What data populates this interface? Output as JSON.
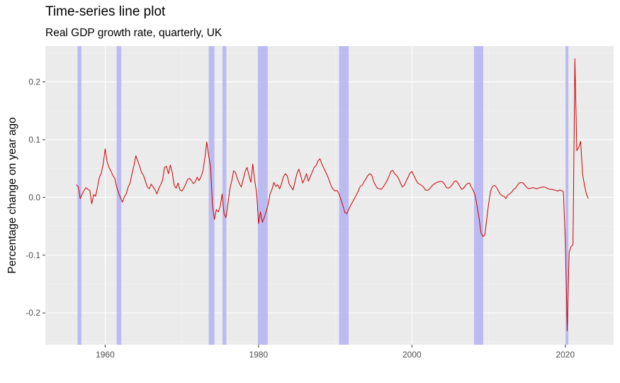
{
  "chart_data": {
    "type": "line",
    "title": "Time-series line plot",
    "subtitle": "Real GDP growth rate, quarterly, UK",
    "xlabel": "",
    "ylabel": "Percentage change on year ago",
    "xlim": [
      1952.2,
      2026.3
    ],
    "ylim": [
      -0.255,
      0.262
    ],
    "x_ticks": [
      1960,
      1980,
      2000,
      2020
    ],
    "x_tick_labels": [
      "1960",
      "1980",
      "2000",
      "2020"
    ],
    "y_ticks": [
      -0.2,
      -0.1,
      0.0,
      0.1,
      0.2
    ],
    "y_tick_labels": [
      "-0.2",
      "-0.1",
      "0.0",
      "0.1",
      "0.2"
    ],
    "grid": true,
    "colors": {
      "panel_background": "#ebebeb",
      "grid_major": "#ffffff",
      "grid_minor": "#f5f5f5",
      "line": "#cc0000",
      "recession": "#b3b3f2"
    },
    "recessions": [
      [
        1956.4,
        1956.9
      ],
      [
        1961.5,
        1962.1
      ],
      [
        1973.5,
        1974.25
      ],
      [
        1975.3,
        1975.8
      ],
      [
        1979.9,
        1981.2
      ],
      [
        1990.5,
        1991.75
      ],
      [
        2008.1,
        2009.3
      ],
      [
        2020.0,
        2020.4
      ]
    ],
    "series": [
      {
        "values": [
          [
            1956.25,
            0.022
          ],
          [
            1956.5,
            0.018
          ],
          [
            1956.75,
            -0.002
          ],
          [
            1957.0,
            0.006
          ],
          [
            1957.25,
            0.012
          ],
          [
            1957.5,
            0.017
          ],
          [
            1957.75,
            0.014
          ],
          [
            1958.0,
            0.012
          ],
          [
            1958.25,
            -0.011
          ],
          [
            1958.5,
            0.005
          ],
          [
            1958.75,
            0.002
          ],
          [
            1959.0,
            0.018
          ],
          [
            1959.25,
            0.035
          ],
          [
            1959.5,
            0.042
          ],
          [
            1959.75,
            0.058
          ],
          [
            1960.0,
            0.084
          ],
          [
            1960.25,
            0.062
          ],
          [
            1960.5,
            0.052
          ],
          [
            1960.75,
            0.046
          ],
          [
            1961.0,
            0.038
          ],
          [
            1961.25,
            0.033
          ],
          [
            1961.5,
            0.018
          ],
          [
            1961.75,
            0.008
          ],
          [
            1962.0,
            -0.001
          ],
          [
            1962.25,
            -0.008
          ],
          [
            1962.5,
            0.001
          ],
          [
            1962.75,
            0.006
          ],
          [
            1963.0,
            0.018
          ],
          [
            1963.25,
            0.025
          ],
          [
            1963.5,
            0.041
          ],
          [
            1963.75,
            0.055
          ],
          [
            1964.0,
            0.072
          ],
          [
            1964.25,
            0.063
          ],
          [
            1964.5,
            0.054
          ],
          [
            1964.75,
            0.043
          ],
          [
            1965.0,
            0.038
          ],
          [
            1965.25,
            0.028
          ],
          [
            1965.5,
            0.018
          ],
          [
            1965.75,
            0.015
          ],
          [
            1966.0,
            0.023
          ],
          [
            1966.25,
            0.018
          ],
          [
            1966.5,
            0.013
          ],
          [
            1966.75,
            0.006
          ],
          [
            1967.0,
            0.016
          ],
          [
            1967.25,
            0.022
          ],
          [
            1967.5,
            0.031
          ],
          [
            1967.75,
            0.052
          ],
          [
            1968.0,
            0.054
          ],
          [
            1968.25,
            0.041
          ],
          [
            1968.5,
            0.056
          ],
          [
            1968.75,
            0.043
          ],
          [
            1969.0,
            0.021
          ],
          [
            1969.25,
            0.016
          ],
          [
            1969.5,
            0.025
          ],
          [
            1969.75,
            0.013
          ],
          [
            1970.0,
            0.011
          ],
          [
            1970.25,
            0.016
          ],
          [
            1970.5,
            0.023
          ],
          [
            1970.75,
            0.031
          ],
          [
            1971.0,
            0.033
          ],
          [
            1971.25,
            0.029
          ],
          [
            1971.5,
            0.024
          ],
          [
            1971.75,
            0.027
          ],
          [
            1972.0,
            0.035
          ],
          [
            1972.25,
            0.029
          ],
          [
            1972.5,
            0.036
          ],
          [
            1972.75,
            0.046
          ],
          [
            1973.0,
            0.068
          ],
          [
            1973.25,
            0.096
          ],
          [
            1973.5,
            0.072
          ],
          [
            1973.75,
            0.052
          ],
          [
            1974.0,
            -0.015
          ],
          [
            1974.25,
            -0.038
          ],
          [
            1974.5,
            -0.021
          ],
          [
            1974.75,
            -0.025
          ],
          [
            1975.0,
            -0.016
          ],
          [
            1975.25,
            0.006
          ],
          [
            1975.5,
            -0.028
          ],
          [
            1975.75,
            -0.035
          ],
          [
            1976.0,
            -0.012
          ],
          [
            1976.25,
            0.014
          ],
          [
            1976.5,
            0.028
          ],
          [
            1976.75,
            0.046
          ],
          [
            1977.0,
            0.043
          ],
          [
            1977.25,
            0.032
          ],
          [
            1977.5,
            0.024
          ],
          [
            1977.75,
            0.018
          ],
          [
            1978.0,
            0.031
          ],
          [
            1978.25,
            0.045
          ],
          [
            1978.5,
            0.052
          ],
          [
            1978.75,
            0.038
          ],
          [
            1979.0,
            0.026
          ],
          [
            1979.25,
            0.058
          ],
          [
            1979.5,
            0.029
          ],
          [
            1979.75,
            0.008
          ],
          [
            1980.0,
            -0.045
          ],
          [
            1980.25,
            -0.025
          ],
          [
            1980.5,
            -0.043
          ],
          [
            1980.75,
            -0.035
          ],
          [
            1981.0,
            -0.024
          ],
          [
            1981.25,
            -0.012
          ],
          [
            1981.5,
            0.006
          ],
          [
            1981.75,
            0.014
          ],
          [
            1982.0,
            0.026
          ],
          [
            1982.25,
            0.019
          ],
          [
            1982.5,
            0.022
          ],
          [
            1982.75,
            0.015
          ],
          [
            1983.0,
            0.024
          ],
          [
            1983.25,
            0.036
          ],
          [
            1983.5,
            0.041
          ],
          [
            1983.75,
            0.037
          ],
          [
            1984.0,
            0.023
          ],
          [
            1984.25,
            0.018
          ],
          [
            1984.5,
            0.013
          ],
          [
            1984.75,
            0.027
          ],
          [
            1985.0,
            0.041
          ],
          [
            1985.25,
            0.049
          ],
          [
            1985.5,
            0.038
          ],
          [
            1985.75,
            0.025
          ],
          [
            1986.0,
            0.032
          ],
          [
            1986.25,
            0.041
          ],
          [
            1986.5,
            0.028
          ],
          [
            1986.75,
            0.036
          ],
          [
            1987.0,
            0.044
          ],
          [
            1987.25,
            0.052
          ],
          [
            1987.5,
            0.055
          ],
          [
            1987.75,
            0.063
          ],
          [
            1988.0,
            0.067
          ],
          [
            1988.25,
            0.058
          ],
          [
            1988.5,
            0.051
          ],
          [
            1988.75,
            0.044
          ],
          [
            1989.0,
            0.037
          ],
          [
            1989.25,
            0.028
          ],
          [
            1989.5,
            0.019
          ],
          [
            1989.75,
            0.014
          ],
          [
            1990.0,
            0.011
          ],
          [
            1990.25,
            0.012
          ],
          [
            1990.5,
            0.006
          ],
          [
            1990.75,
            -0.004
          ],
          [
            1991.0,
            -0.014
          ],
          [
            1991.25,
            -0.026
          ],
          [
            1991.5,
            -0.028
          ],
          [
            1991.75,
            -0.021
          ],
          [
            1992.0,
            -0.014
          ],
          [
            1992.25,
            -0.008
          ],
          [
            1992.5,
            -0.002
          ],
          [
            1992.75,
            0.004
          ],
          [
            1993.0,
            0.011
          ],
          [
            1993.25,
            0.019
          ],
          [
            1993.5,
            0.021
          ],
          [
            1993.75,
            0.027
          ],
          [
            1994.0,
            0.032
          ],
          [
            1994.25,
            0.038
          ],
          [
            1994.5,
            0.041
          ],
          [
            1994.75,
            0.039
          ],
          [
            1995.0,
            0.028
          ],
          [
            1995.25,
            0.021
          ],
          [
            1995.5,
            0.016
          ],
          [
            1995.75,
            0.015
          ],
          [
            1996.0,
            0.014
          ],
          [
            1996.25,
            0.018
          ],
          [
            1996.5,
            0.023
          ],
          [
            1996.75,
            0.029
          ],
          [
            1997.0,
            0.036
          ],
          [
            1997.25,
            0.045
          ],
          [
            1997.5,
            0.047
          ],
          [
            1997.75,
            0.041
          ],
          [
            1998.0,
            0.038
          ],
          [
            1998.25,
            0.033
          ],
          [
            1998.5,
            0.025
          ],
          [
            1998.75,
            0.018
          ],
          [
            1999.0,
            0.021
          ],
          [
            1999.25,
            0.028
          ],
          [
            1999.5,
            0.035
          ],
          [
            1999.75,
            0.042
          ],
          [
            2000.0,
            0.045
          ],
          [
            2000.25,
            0.038
          ],
          [
            2000.5,
            0.031
          ],
          [
            2000.75,
            0.025
          ],
          [
            2001.0,
            0.023
          ],
          [
            2001.25,
            0.021
          ],
          [
            2001.5,
            0.018
          ],
          [
            2001.75,
            0.013
          ],
          [
            2002.0,
            0.012
          ],
          [
            2002.25,
            0.014
          ],
          [
            2002.5,
            0.018
          ],
          [
            2002.75,
            0.022
          ],
          [
            2003.0,
            0.024
          ],
          [
            2003.25,
            0.026
          ],
          [
            2003.5,
            0.027
          ],
          [
            2003.75,
            0.028
          ],
          [
            2004.0,
            0.027
          ],
          [
            2004.25,
            0.023
          ],
          [
            2004.5,
            0.017
          ],
          [
            2004.75,
            0.016
          ],
          [
            2005.0,
            0.018
          ],
          [
            2005.25,
            0.022
          ],
          [
            2005.5,
            0.027
          ],
          [
            2005.75,
            0.029
          ],
          [
            2006.0,
            0.025
          ],
          [
            2006.25,
            0.019
          ],
          [
            2006.5,
            0.014
          ],
          [
            2006.75,
            0.016
          ],
          [
            2007.0,
            0.021
          ],
          [
            2007.25,
            0.024
          ],
          [
            2007.5,
            0.025
          ],
          [
            2007.75,
            0.018
          ],
          [
            2008.0,
            0.012
          ],
          [
            2008.25,
            0.003
          ],
          [
            2008.5,
            -0.015
          ],
          [
            2008.75,
            -0.035
          ],
          [
            2009.0,
            -0.061
          ],
          [
            2009.25,
            -0.068
          ],
          [
            2009.5,
            -0.065
          ],
          [
            2009.75,
            -0.038
          ],
          [
            2010.0,
            -0.011
          ],
          [
            2010.25,
            0.011
          ],
          [
            2010.5,
            0.019
          ],
          [
            2010.75,
            0.021
          ],
          [
            2011.0,
            0.018
          ],
          [
            2011.25,
            0.012
          ],
          [
            2011.5,
            0.006
          ],
          [
            2011.75,
            0.003
          ],
          [
            2012.0,
            0.002
          ],
          [
            2012.25,
            -0.002
          ],
          [
            2012.5,
            0.004
          ],
          [
            2012.75,
            0.006
          ],
          [
            2013.0,
            0.009
          ],
          [
            2013.25,
            0.014
          ],
          [
            2013.5,
            0.016
          ],
          [
            2013.75,
            0.021
          ],
          [
            2014.0,
            0.025
          ],
          [
            2014.25,
            0.026
          ],
          [
            2014.5,
            0.025
          ],
          [
            2014.75,
            0.021
          ],
          [
            2015.0,
            0.017
          ],
          [
            2015.25,
            0.015
          ],
          [
            2015.5,
            0.016
          ],
          [
            2015.75,
            0.017
          ],
          [
            2016.0,
            0.016
          ],
          [
            2016.25,
            0.015
          ],
          [
            2016.5,
            0.016
          ],
          [
            2016.75,
            0.017
          ],
          [
            2017.0,
            0.018
          ],
          [
            2017.25,
            0.018
          ],
          [
            2017.5,
            0.017
          ],
          [
            2017.75,
            0.015
          ],
          [
            2018.0,
            0.014
          ],
          [
            2018.25,
            0.014
          ],
          [
            2018.5,
            0.013
          ],
          [
            2018.75,
            0.012
          ],
          [
            2019.0,
            0.011
          ],
          [
            2019.25,
            0.013
          ],
          [
            2019.5,
            0.012
          ],
          [
            2019.75,
            0.01
          ],
          [
            2020.0,
            -0.076
          ],
          [
            2020.25,
            -0.231
          ],
          [
            2020.5,
            -0.095
          ],
          [
            2020.75,
            -0.085
          ],
          [
            2021.0,
            -0.082
          ],
          [
            2021.25,
            0.24
          ],
          [
            2021.5,
            0.081
          ],
          [
            2021.75,
            0.087
          ],
          [
            2022.0,
            0.097
          ],
          [
            2022.25,
            0.041
          ],
          [
            2022.5,
            0.021
          ],
          [
            2022.75,
            0.006
          ],
          [
            2023.0,
            -0.002
          ]
        ]
      }
    ]
  }
}
